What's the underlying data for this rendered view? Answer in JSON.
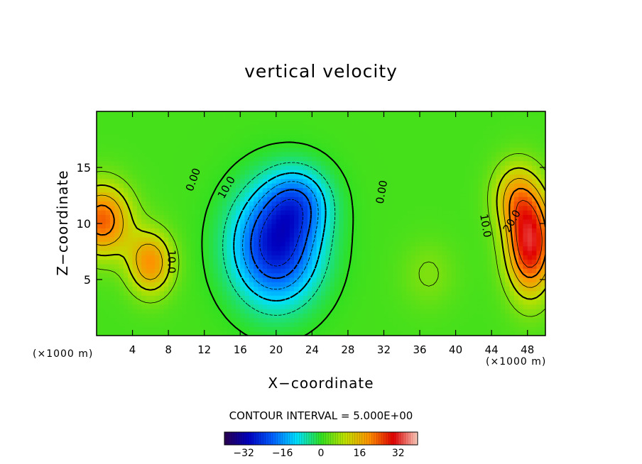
{
  "chart_data": {
    "type": "heatmap",
    "title": "vertical velocity",
    "xlabel": "X−coordinate",
    "ylabel": "Z−coordinate",
    "x_unit_label": "(×1000 m)",
    "xlim": [
      0,
      50
    ],
    "ylim": [
      0,
      20
    ],
    "x_ticks": [
      4,
      8,
      12,
      16,
      20,
      24,
      28,
      32,
      36,
      40,
      44,
      48
    ],
    "y_ticks": [
      5,
      10,
      15
    ],
    "contour_interval_text": "CONTOUR INTERVAL = 5.000E+00",
    "contour_labels": [
      {
        "text": "0.00",
        "x": 10.8,
        "y": 13.9,
        "angle": -70
      },
      {
        "text": "10.0",
        "x": 14.5,
        "y": 13.2,
        "angle": -60
      },
      {
        "text": "0.00",
        "x": 31.8,
        "y": 12.8,
        "angle": -80
      },
      {
        "text": "10.0",
        "x": 8.3,
        "y": 6.6,
        "angle": 90
      },
      {
        "text": "10.0",
        "x": 43.3,
        "y": 9.8,
        "angle": 80
      },
      {
        "text": "20.0",
        "x": 46.3,
        "y": 10.2,
        "angle": -60
      }
    ],
    "features": [
      {
        "kind": "updraft",
        "x": 0.6,
        "y": 10.3,
        "value": 22,
        "sx": 3.2,
        "sy": 3.2
      },
      {
        "kind": "updraft",
        "x": 6.0,
        "y": 6.5,
        "value": 18,
        "sx": 2.5,
        "sy": 2.8
      },
      {
        "kind": "downdraft",
        "x": 20.0,
        "y": 8.0,
        "value": -30,
        "sx": 4.8,
        "sy": 5.0
      },
      {
        "kind": "downdraft",
        "x": 22.5,
        "y": 12.0,
        "value": -14,
        "sx": 3.5,
        "sy": 3.0
      },
      {
        "kind": "updraft",
        "x": 48.3,
        "y": 8.3,
        "value": 30,
        "sx": 2.6,
        "sy": 4.5
      },
      {
        "kind": "updraft",
        "x": 46.5,
        "y": 12.5,
        "value": 12,
        "sx": 2.5,
        "sy": 3.0
      },
      {
        "kind": "updraft",
        "x": 37.0,
        "y": 5.5,
        "value": 4,
        "sx": 3.0,
        "sy": 3.0
      }
    ],
    "colorbar": {
      "ticks": [
        -32,
        -16,
        0,
        16,
        32
      ],
      "range": [
        -40,
        40
      ],
      "colors": [
        "#2a0050",
        "#0000c0",
        "#0060ff",
        "#00e0ff",
        "#30e020",
        "#c0e000",
        "#ff9000",
        "#e00000",
        "#ffd0c0"
      ]
    }
  }
}
